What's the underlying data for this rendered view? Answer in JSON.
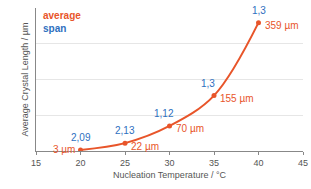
{
  "chart_data": {
    "type": "line",
    "x_label": "Nucleation Temperature / °C",
    "y_label": "Average Crystal Length / µm",
    "x": [
      20,
      25,
      30,
      35,
      40
    ],
    "series": [
      {
        "name": "average",
        "color": "#e8552a",
        "marker": "circle",
        "line_style": "spline",
        "values": [
          3,
          22,
          70,
          155,
          359
        ],
        "value_labels": [
          "3 µm",
          "22 µm",
          "70 µm",
          "155 µm",
          "359 µm"
        ]
      },
      {
        "name": "span",
        "color": "#2e6fc0",
        "type": "text",
        "values": [
          2.09,
          2.13,
          1.12,
          1.3,
          1.3
        ],
        "value_labels": [
          "2,09",
          "2,13",
          "1,12",
          "1,3",
          "1,3"
        ]
      }
    ],
    "xlim": [
      15,
      45
    ],
    "xticks": [
      15,
      20,
      25,
      30,
      35,
      40,
      45
    ],
    "ylim": [
      0,
      400
    ],
    "yticks": [
      0,
      100,
      200,
      300,
      400
    ],
    "grid": true,
    "data_labels": true,
    "tick_labels": "x"
  }
}
